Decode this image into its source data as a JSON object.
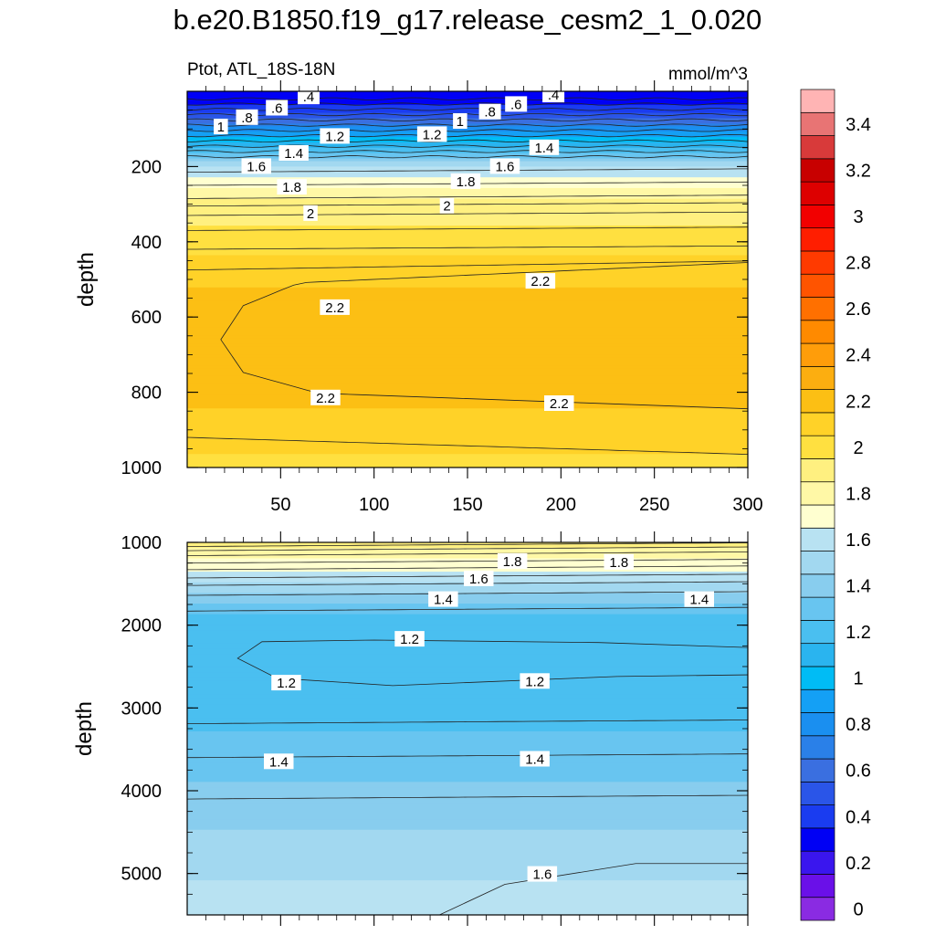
{
  "figure": {
    "title": "b.e20.B1850.f19_g17.release_cesm2_1_0.020"
  },
  "chart_data": {
    "type": "heatmap",
    "subtitle_left": "Ptot, ATL_18S-18N",
    "subtitle_right": "mmol/m^3",
    "ylabel": "depth",
    "x": {
      "range": [
        0,
        300
      ],
      "ticks": [
        50,
        100,
        150,
        200,
        250,
        300
      ]
    },
    "panels": [
      {
        "name": "upper",
        "depth_range": [
          0,
          1000
        ],
        "yticks": [
          200,
          400,
          600,
          800,
          1000
        ],
        "contour_labels": [
          {
            "text": ".4",
            "x": 65,
            "depth": 15
          },
          {
            "text": ".6",
            "x": 48,
            "depth": 45
          },
          {
            "text": ".8",
            "x": 32,
            "depth": 70
          },
          {
            "text": "1",
            "x": 18,
            "depth": 95
          },
          {
            "text": "1.2",
            "x": 79,
            "depth": 120
          },
          {
            "text": "1.4",
            "x": 57,
            "depth": 165
          },
          {
            "text": "1.6",
            "x": 37,
            "depth": 200
          },
          {
            "text": "1.8",
            "x": 56,
            "depth": 255
          },
          {
            "text": "2",
            "x": 66,
            "depth": 325
          },
          {
            "text": "2.2",
            "x": 79,
            "depth": 575
          },
          {
            "text": "2.2",
            "x": 74,
            "depth": 815
          },
          {
            "text": ".4",
            "x": 196,
            "depth": 10
          },
          {
            "text": ".6",
            "x": 176,
            "depth": 35
          },
          {
            "text": ".8",
            "x": 162,
            "depth": 55
          },
          {
            "text": "1",
            "x": 146,
            "depth": 80
          },
          {
            "text": "1.2",
            "x": 131,
            "depth": 115
          },
          {
            "text": "1.4",
            "x": 191,
            "depth": 150
          },
          {
            "text": "1.6",
            "x": 170,
            "depth": 200
          },
          {
            "text": "1.8",
            "x": 149,
            "depth": 240
          },
          {
            "text": "2",
            "x": 139,
            "depth": 305
          },
          {
            "text": "2.2",
            "x": 189,
            "depth": 505
          },
          {
            "text": "2.2",
            "x": 199,
            "depth": 830
          }
        ]
      },
      {
        "name": "lower",
        "depth_range": [
          1000,
          5500
        ],
        "yticks": [
          1000,
          2000,
          3000,
          4000,
          5000
        ],
        "contour_labels": [
          {
            "text": "1.8",
            "x": 174,
            "depth": 1230
          },
          {
            "text": "1.8",
            "x": 231,
            "depth": 1240
          },
          {
            "text": "1.6",
            "x": 156,
            "depth": 1440
          },
          {
            "text": "1.4",
            "x": 137,
            "depth": 1690
          },
          {
            "text": "1.4",
            "x": 274,
            "depth": 1690
          },
          {
            "text": "1.2",
            "x": 119,
            "depth": 2170
          },
          {
            "text": "1.2",
            "x": 53,
            "depth": 2700
          },
          {
            "text": "1.2",
            "x": 186,
            "depth": 2680
          },
          {
            "text": "1.4",
            "x": 49,
            "depth": 3650
          },
          {
            "text": "1.4",
            "x": 186,
            "depth": 3620
          },
          {
            "text": "1.6",
            "x": 190,
            "depth": 5010
          }
        ]
      }
    ],
    "colorbar": {
      "levels": [
        0,
        0.1,
        0.2,
        0.3,
        0.4,
        0.5,
        0.6,
        0.7,
        0.8,
        0.9,
        1.0,
        1.1,
        1.2,
        1.3,
        1.4,
        1.5,
        1.6,
        1.7,
        1.8,
        1.9,
        2.0,
        2.1,
        2.2,
        2.3,
        2.4,
        2.5,
        2.6,
        2.7,
        2.8,
        2.9,
        3.0,
        3.1,
        3.2,
        3.3,
        3.4,
        3.5
      ],
      "tick_labels": [
        "0",
        "0.2",
        "0.4",
        "0.6",
        "0.8",
        "1",
        "1.2",
        "1.4",
        "1.6",
        "1.8",
        "2",
        "2.2",
        "2.4",
        "2.6",
        "2.8",
        "3",
        "3.2",
        "3.4"
      ],
      "colors": [
        "#8a2be2",
        "#6a10e8",
        "#3a16ee",
        "#0000f5",
        "#1a3cf0",
        "#2a55e8",
        "#3a6fe0",
        "#2a80e8",
        "#1a8ff0",
        "#14a0f5",
        "#00bcf5",
        "#2ab4ef",
        "#4abff0",
        "#68c5f0",
        "#88cdee",
        "#a2d8f0",
        "#b8e2f2",
        "#ffffd0",
        "#fff8a6",
        "#fff080",
        "#ffe040",
        "#ffd228",
        "#fcbf14",
        "#fcae10",
        "#ff9d0a",
        "#ff8a00",
        "#ff7000",
        "#ff5400",
        "#ff3a00",
        "#ff1e00",
        "#f20000",
        "#dd0000",
        "#c80000",
        "#d83a3a",
        "#e87474",
        "#ffb4b4"
      ]
    }
  }
}
